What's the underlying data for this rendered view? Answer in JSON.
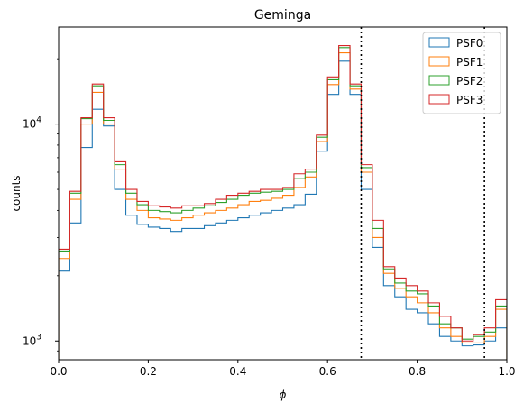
{
  "chart_data": {
    "type": "step-histogram",
    "title": "Geminga",
    "xlabel": "ϕ",
    "ylabel": "counts",
    "xlim": [
      0,
      1
    ],
    "ylim": [
      820,
      28000
    ],
    "yscale": "log",
    "x_ticks": [
      "0.0",
      "0.2",
      "0.4",
      "0.6",
      "0.8",
      "1.0"
    ],
    "y_ticks": [
      {
        "value": 1000,
        "label": "10",
        "exp": "3"
      },
      {
        "value": 10000,
        "label": "10",
        "exp": "4"
      }
    ],
    "vlines": [
      0.675,
      0.95
    ],
    "vline_style": "dotted",
    "legend_position": "upper right",
    "bin_edges": [
      0.0,
      0.025,
      0.05,
      0.075,
      0.1,
      0.125,
      0.15,
      0.175,
      0.2,
      0.225,
      0.25,
      0.275,
      0.3,
      0.325,
      0.35,
      0.375,
      0.4,
      0.425,
      0.45,
      0.475,
      0.5,
      0.525,
      0.55,
      0.575,
      0.6,
      0.625,
      0.65,
      0.675,
      0.7,
      0.725,
      0.75,
      0.775,
      0.8,
      0.825,
      0.85,
      0.875,
      0.9,
      0.925,
      0.95,
      0.975,
      1.0
    ],
    "series": [
      {
        "name": "PSF0",
        "color": "#1f77b4",
        "values": [
          2100,
          3500,
          7800,
          11700,
          9800,
          5000,
          3800,
          3450,
          3350,
          3300,
          3200,
          3300,
          3300,
          3400,
          3500,
          3600,
          3700,
          3800,
          3900,
          4000,
          4100,
          4250,
          4750,
          7500,
          13700,
          19500,
          13700,
          5000,
          2700,
          1800,
          1600,
          1400,
          1350,
          1200,
          1050,
          1000,
          950,
          960,
          1000,
          1150
        ]
      },
      {
        "name": "PSF1",
        "color": "#ff7f0e",
        "values": [
          2400,
          4500,
          10000,
          14000,
          10000,
          6200,
          4500,
          4000,
          3700,
          3650,
          3600,
          3700,
          3800,
          3900,
          4000,
          4100,
          4250,
          4400,
          4450,
          4550,
          4700,
          5100,
          5700,
          8300,
          15200,
          21300,
          14500,
          6000,
          3000,
          2050,
          1750,
          1600,
          1500,
          1350,
          1150,
          1050,
          980,
          980,
          1050,
          1400
        ]
      },
      {
        "name": "PSF2",
        "color": "#2ca02c",
        "values": [
          2600,
          4800,
          10600,
          15000,
          10400,
          6500,
          4800,
          4250,
          4000,
          3950,
          3900,
          4000,
          4100,
          4200,
          4350,
          4500,
          4700,
          4800,
          4850,
          4900,
          5000,
          5600,
          6000,
          8700,
          16000,
          22500,
          15000,
          6300,
          3300,
          2150,
          1850,
          1700,
          1650,
          1450,
          1200,
          1150,
          1020,
          1050,
          1100,
          1450
        ]
      },
      {
        "name": "PSF3",
        "color": "#d62728",
        "values": [
          2650,
          4900,
          10700,
          15300,
          10700,
          6700,
          5000,
          4400,
          4200,
          4150,
          4100,
          4200,
          4200,
          4300,
          4500,
          4700,
          4800,
          4900,
          5000,
          5000,
          5100,
          5900,
          6200,
          8900,
          16500,
          23000,
          15300,
          6500,
          3600,
          2200,
          1950,
          1800,
          1700,
          1500,
          1300,
          1150,
          1000,
          1070,
          1150,
          1550
        ]
      }
    ]
  }
}
